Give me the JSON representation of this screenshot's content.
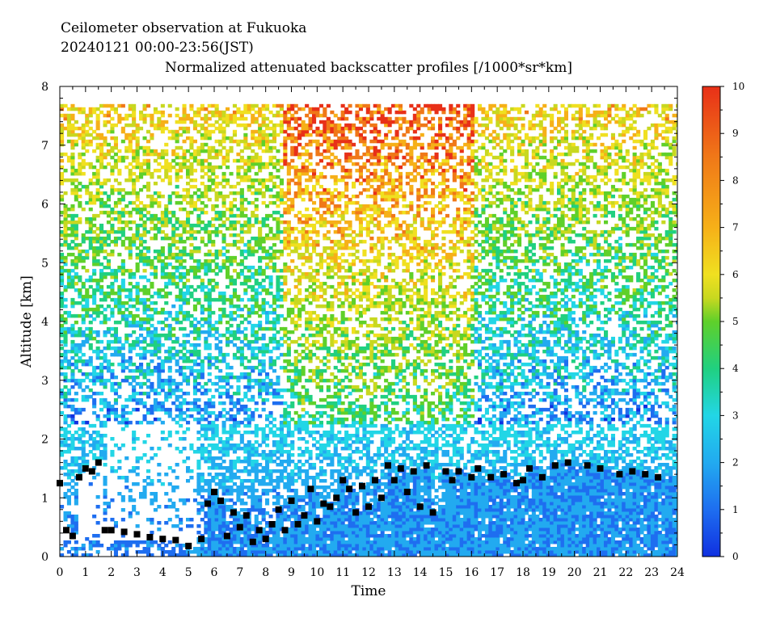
{
  "header": {
    "line1": "Ceilometer observation at Fukuoka",
    "line2": "20240121  00:00-23:56(JST)",
    "line3": "Normalized attenuated backscatter profiles [/1000*sr*km]"
  },
  "chart_data": {
    "type": "heatmap",
    "title": "Normalized attenuated backscatter profiles [/1000*sr*km]",
    "xlabel": "Time",
    "ylabel": "Altitude [km]",
    "xlim": [
      0,
      24
    ],
    "ylim": [
      0,
      8
    ],
    "x_ticks": [
      "0",
      "1",
      "2",
      "3",
      "4",
      "5",
      "6",
      "7",
      "8",
      "9",
      "10",
      "11",
      "12",
      "13",
      "14",
      "15",
      "16",
      "17",
      "18",
      "19",
      "20",
      "21",
      "22",
      "23",
      "24"
    ],
    "y_ticks": [
      "0",
      "1",
      "2",
      "3",
      "4",
      "5",
      "6",
      "7",
      "8"
    ],
    "colorbar": {
      "range": [
        0,
        10
      ],
      "ticks": [
        "0",
        "1",
        "2",
        "3",
        "4",
        "5",
        "6",
        "7",
        "8",
        "9",
        "10"
      ],
      "colors": [
        "#1030e0",
        "#1e6ef0",
        "#22aaf0",
        "#22d6e6",
        "#20d080",
        "#5fd02a",
        "#c8d820",
        "#f0e020",
        "#f6b018",
        "#f07818",
        "#e83018"
      ]
    },
    "data_top_km": 7.65,
    "cloud_base_km": [
      [
        0.0,
        1.25
      ],
      [
        0.25,
        0.45
      ],
      [
        0.5,
        0.35
      ],
      [
        0.75,
        1.35
      ],
      [
        1.0,
        1.5
      ],
      [
        1.25,
        1.45
      ],
      [
        1.5,
        1.6
      ],
      [
        1.75,
        0.45
      ],
      [
        2.0,
        0.45
      ],
      [
        2.5,
        0.42
      ],
      [
        3.0,
        0.38
      ],
      [
        3.5,
        0.33
      ],
      [
        4.0,
        0.3
      ],
      [
        4.5,
        0.28
      ],
      [
        5.0,
        0.18
      ],
      [
        5.5,
        0.3
      ],
      [
        5.75,
        0.9
      ],
      [
        6.0,
        1.1
      ],
      [
        6.25,
        0.95
      ],
      [
        6.5,
        0.35
      ],
      [
        6.75,
        0.75
      ],
      [
        7.0,
        0.5
      ],
      [
        7.25,
        0.7
      ],
      [
        7.5,
        0.25
      ],
      [
        7.75,
        0.45
      ],
      [
        8.0,
        0.3
      ],
      [
        8.25,
        0.55
      ],
      [
        8.5,
        0.8
      ],
      [
        8.75,
        0.45
      ],
      [
        9.0,
        0.95
      ],
      [
        9.25,
        0.55
      ],
      [
        9.5,
        0.7
      ],
      [
        9.75,
        1.15
      ],
      [
        10.0,
        0.6
      ],
      [
        10.25,
        0.9
      ],
      [
        10.5,
        0.85
      ],
      [
        10.75,
        1.0
      ],
      [
        11.0,
        1.3
      ],
      [
        11.25,
        1.15
      ],
      [
        11.5,
        0.75
      ],
      [
        11.75,
        1.2
      ],
      [
        12.0,
        0.85
      ],
      [
        12.25,
        1.3
      ],
      [
        12.5,
        1.0
      ],
      [
        12.75,
        1.55
      ],
      [
        13.0,
        1.3
      ],
      [
        13.25,
        1.5
      ],
      [
        13.5,
        1.1
      ],
      [
        13.75,
        1.45
      ],
      [
        14.0,
        0.85
      ],
      [
        14.25,
        1.55
      ],
      [
        14.5,
        0.75
      ],
      [
        15.0,
        1.45
      ],
      [
        15.25,
        1.3
      ],
      [
        15.5,
        1.45
      ],
      [
        16.0,
        1.35
      ],
      [
        16.25,
        1.5
      ],
      [
        16.75,
        1.35
      ],
      [
        17.25,
        1.4
      ],
      [
        17.75,
        1.25
      ],
      [
        18.0,
        1.3
      ],
      [
        18.25,
        1.5
      ],
      [
        18.75,
        1.35
      ],
      [
        19.25,
        1.55
      ],
      [
        19.75,
        1.6
      ],
      [
        20.5,
        1.55
      ],
      [
        21.0,
        1.5
      ],
      [
        21.75,
        1.4
      ],
      [
        22.25,
        1.45
      ],
      [
        22.75,
        1.4
      ],
      [
        23.25,
        1.35
      ]
    ]
  }
}
